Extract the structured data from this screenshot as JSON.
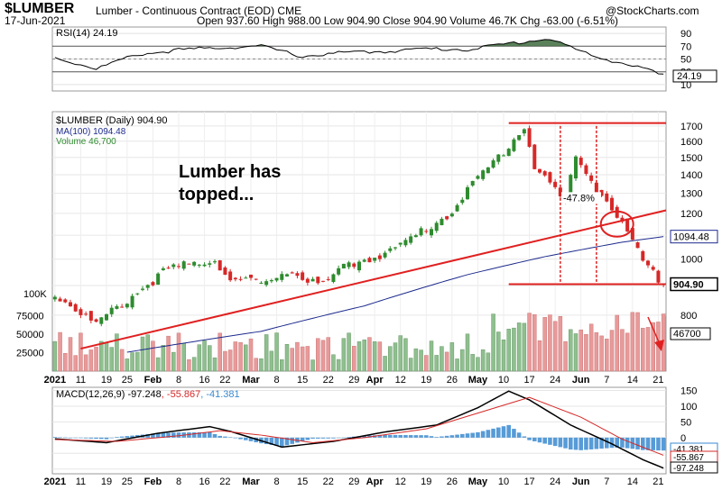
{
  "header": {
    "symbol": "$LUMBER",
    "description": "Lumber - Continuous Contract (EOD) CME",
    "date": "17-Jun-2021",
    "ohlc_line": "Open 937.60  High 988.00  Low 904.90  Close 904.90  Volume 46.7K  Chg -63.00 (-6.51%)",
    "source": "@StockCharts.com"
  },
  "colors": {
    "up": "#2e8b2e",
    "down": "#d62828",
    "ma": "#1c2a8c",
    "annot": "#e02020",
    "macd_hist": "#3a8ad0",
    "rsi_fill": "#3d6b3d"
  },
  "chart_data": [
    {
      "type": "line",
      "panel": "rsi",
      "legend": "RSI(14) 24.19",
      "y_ticks": [
        "90",
        "70",
        "50",
        "30",
        "10"
      ],
      "last_label": "24.19",
      "ylim": [
        0,
        100
      ],
      "x_index": [
        0,
        8,
        16,
        24,
        32,
        40,
        48,
        56,
        64,
        72,
        80,
        88,
        96,
        104,
        112,
        118
      ],
      "values": [
        52,
        35,
        57,
        64,
        68,
        70,
        54,
        60,
        62,
        66,
        65,
        74,
        82,
        55,
        40,
        24
      ]
    },
    {
      "type": "candlestick",
      "panel": "price",
      "legend": "$LUMBER (Daily) 904.90",
      "ma_legend": "MA(100) 1094.48",
      "volume_legend": "Volume 46,700",
      "y_scale": "log",
      "ylim": [
        640,
        1800
      ],
      "y_ticks": [
        "1700",
        "1600",
        "1500",
        "1400",
        "1300",
        "1200",
        "1100",
        "1000",
        "900",
        "800"
      ],
      "last_price_label": "904.90",
      "ma_last_label": "1094.48",
      "x_tick_labels": [
        "2021",
        "11",
        "19",
        "25",
        "Feb",
        "8",
        "16",
        "22",
        "Mar",
        "8",
        "15",
        "22",
        "29",
        "Apr",
        "12",
        "19",
        "26",
        "May",
        "10",
        "17",
        "24",
        "Jun",
        "7",
        "14",
        "21"
      ],
      "x_tick_index": [
        0,
        5,
        10,
        14,
        19,
        24,
        29,
        33,
        38,
        43,
        48,
        53,
        58,
        62,
        67,
        72,
        77,
        82,
        87,
        92,
        97,
        102,
        107,
        112,
        117
      ],
      "close_anchors": [
        [
          0,
          870
        ],
        [
          8,
          770
        ],
        [
          14,
          850
        ],
        [
          22,
          960
        ],
        [
          31,
          1000
        ],
        [
          34,
          920
        ],
        [
          42,
          905
        ],
        [
          44,
          960
        ],
        [
          52,
          900
        ],
        [
          56,
          970
        ],
        [
          66,
          1040
        ],
        [
          76,
          1190
        ],
        [
          86,
          1500
        ],
        [
          91,
          1690
        ],
        [
          93,
          1450
        ],
        [
          99,
          1250
        ],
        [
          101,
          1500
        ],
        [
          105,
          1330
        ],
        [
          109,
          1190
        ],
        [
          112,
          1060
        ],
        [
          115,
          960
        ],
        [
          118,
          905
        ]
      ],
      "ma100_anchors": [
        [
          14,
          690
        ],
        [
          40,
          750
        ],
        [
          60,
          830
        ],
        [
          80,
          940
        ],
        [
          95,
          1010
        ],
        [
          110,
          1070
        ],
        [
          118,
          1094
        ]
      ],
      "volume_label": "100K",
      "volume_ticks": [
        "75000",
        "50000",
        "25000"
      ],
      "volume_last_label": "46700",
      "annotations": {
        "text_line1": "Lumber has",
        "text_line2": "topped...",
        "pct_change": "-47.8%"
      }
    },
    {
      "type": "line",
      "panel": "macd",
      "legend_name": "MACD(12,26,9)",
      "legend_macd": "-97.248",
      "legend_signal": "-55.867",
      "legend_hist": "-41.381",
      "y_ticks": [
        "150",
        "100",
        "50",
        "0",
        "-50",
        "-100"
      ],
      "last_labels": [
        "-41.381",
        "-55.867",
        "-97.248"
      ],
      "ylim": [
        -115,
        160
      ],
      "macd_anchors": [
        [
          0,
          -4
        ],
        [
          10,
          -16
        ],
        [
          20,
          14
        ],
        [
          30,
          35
        ],
        [
          34,
          20
        ],
        [
          44,
          -30
        ],
        [
          54,
          -12
        ],
        [
          64,
          18
        ],
        [
          74,
          40
        ],
        [
          82,
          95
        ],
        [
          88,
          148
        ],
        [
          92,
          120
        ],
        [
          100,
          40
        ],
        [
          108,
          -20
        ],
        [
          114,
          -70
        ],
        [
          118,
          -97
        ]
      ],
      "signal_anchors": [
        [
          0,
          -6
        ],
        [
          12,
          -12
        ],
        [
          24,
          6
        ],
        [
          32,
          22
        ],
        [
          40,
          8
        ],
        [
          50,
          -16
        ],
        [
          60,
          0
        ],
        [
          72,
          28
        ],
        [
          84,
          88
        ],
        [
          92,
          128
        ],
        [
          102,
          65
        ],
        [
          110,
          -5
        ],
        [
          118,
          -56
        ]
      ]
    }
  ]
}
